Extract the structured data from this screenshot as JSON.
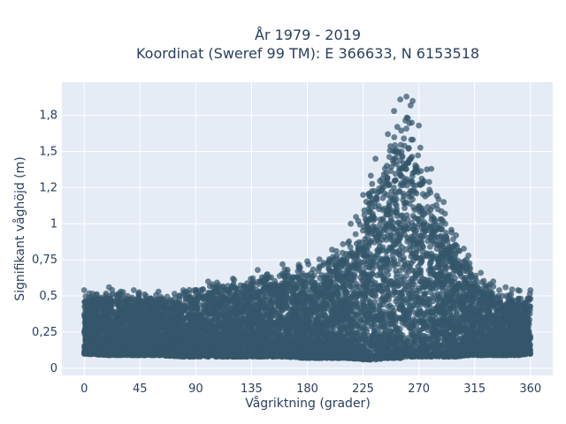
{
  "chart_data": {
    "type": "scatter",
    "title_line1": "År 1979 - 2019",
    "title_line2": "Koordinat (Sweref 99 TM): E 366633, N 6153518",
    "xlabel": "Vågriktning (grader)",
    "ylabel": "Signifikant våghöjd (m)",
    "xlim": [
      -18,
      378
    ],
    "ylim": [
      -0.05,
      1.98
    ],
    "x_ticks": [
      0,
      45,
      90,
      135,
      180,
      225,
      270,
      315,
      360
    ],
    "x_tick_labels": [
      "0",
      "45",
      "90",
      "135",
      "180",
      "225",
      "270",
      "315",
      "360"
    ],
    "y_ticks": [
      0,
      0.25,
      0.5,
      0.75,
      1,
      1.25,
      1.5,
      1.75
    ],
    "y_tick_labels": [
      "0",
      "0,25",
      "0,5",
      "0,75",
      "1",
      "1,2",
      "1,5",
      "1,8"
    ],
    "grid": true,
    "legend": "none",
    "colors": {
      "marker": "#34566b",
      "plot_bg": "#e5ecf6",
      "grid": "#ffffff",
      "text": "#2a3f5f"
    },
    "envelope": {
      "direction": [
        0,
        20,
        40,
        60,
        80,
        100,
        120,
        140,
        160,
        180,
        200,
        215,
        225,
        235,
        245,
        250,
        255,
        260,
        265,
        270,
        280,
        290,
        300,
        310,
        320,
        330,
        340,
        350,
        360
      ],
      "max_height": [
        0.54,
        0.56,
        0.54,
        0.53,
        0.54,
        0.6,
        0.62,
        0.68,
        0.72,
        0.74,
        0.82,
        1.0,
        1.2,
        1.45,
        1.62,
        1.78,
        1.86,
        1.88,
        1.85,
        1.68,
        1.38,
        1.15,
        0.92,
        0.78,
        0.66,
        0.6,
        0.56,
        0.54,
        0.54
      ],
      "min_height": [
        0.1,
        0.09,
        0.09,
        0.09,
        0.08,
        0.08,
        0.08,
        0.08,
        0.08,
        0.07,
        0.07,
        0.07,
        0.06,
        0.06,
        0.07,
        0.07,
        0.07,
        0.08,
        0.08,
        0.08,
        0.08,
        0.08,
        0.08,
        0.09,
        0.09,
        0.09,
        0.09,
        0.09,
        0.1
      ]
    }
  }
}
